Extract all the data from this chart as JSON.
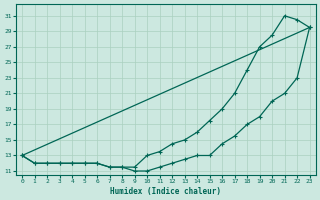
{
  "title": "",
  "xlabel": "Humidex (Indice chaleur)",
  "ylabel": "",
  "bg_color": "#cce8e0",
  "grid_color": "#aad0c0",
  "line_color": "#006655",
  "xlim": [
    -0.5,
    23.5
  ],
  "ylim": [
    10.5,
    32.5
  ],
  "xticks": [
    0,
    1,
    2,
    3,
    4,
    5,
    6,
    7,
    8,
    9,
    10,
    11,
    12,
    13,
    14,
    15,
    16,
    17,
    18,
    19,
    20,
    21,
    22,
    23
  ],
  "yticks": [
    11,
    13,
    15,
    17,
    19,
    21,
    23,
    25,
    27,
    29,
    31
  ],
  "line1_x": [
    0,
    23
  ],
  "line1_y": [
    13,
    29.5
  ],
  "line2_x": [
    0,
    1,
    2,
    3,
    4,
    5,
    6,
    7,
    8,
    9,
    10,
    11,
    12,
    13,
    14,
    15,
    16,
    17,
    18,
    19,
    20,
    21,
    22,
    23
  ],
  "line2_y": [
    13,
    12,
    12,
    12,
    12,
    12,
    12,
    11.5,
    11.5,
    11.5,
    13,
    13.5,
    14.5,
    15,
    16,
    17.5,
    19,
    21,
    24,
    27,
    28.5,
    31,
    30.5,
    29.5
  ],
  "line3_x": [
    0,
    1,
    2,
    3,
    4,
    5,
    6,
    7,
    8,
    9,
    10,
    11,
    12,
    13,
    14,
    15,
    16,
    17,
    18,
    19,
    20,
    21,
    22,
    23
  ],
  "line3_y": [
    13,
    12,
    12,
    12,
    12,
    12,
    12,
    11.5,
    11.5,
    11,
    11,
    11.5,
    12,
    12.5,
    13,
    13,
    14.5,
    15.5,
    17,
    18,
    20,
    21,
    23,
    29.5
  ]
}
